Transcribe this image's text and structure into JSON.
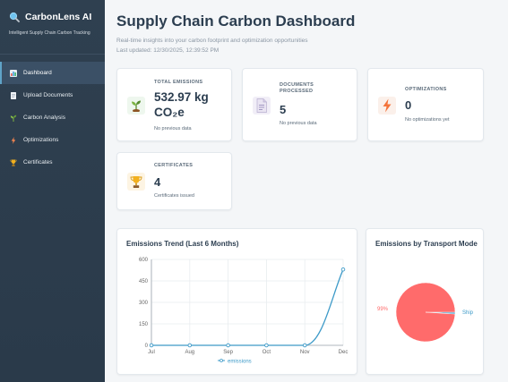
{
  "app": {
    "name": "CarbonLens AI",
    "tagline": "Intelligent Supply Chain Carbon Tracking"
  },
  "nav": [
    {
      "label": "Dashboard",
      "icon": "chart-icon",
      "active": true
    },
    {
      "label": "Upload Documents",
      "icon": "document-icon",
      "active": false
    },
    {
      "label": "Carbon Analysis",
      "icon": "sprout-icon",
      "active": false
    },
    {
      "label": "Optimizations",
      "icon": "lightning-icon",
      "active": false
    },
    {
      "label": "Certificates",
      "icon": "trophy-icon",
      "active": false
    }
  ],
  "header": {
    "title": "Supply Chain Carbon Dashboard",
    "subtitle": "Real-time insights into your carbon footprint and optimization opportunities",
    "updated": "Last updated: 12/30/2025, 12:39:52 PM"
  },
  "stats": {
    "emissions": {
      "label": "TOTAL EMISSIONS",
      "value_line1": "532.97 kg",
      "value_line2": "CO₂e",
      "note": "No previous data",
      "icon": "seedling-icon"
    },
    "documents": {
      "label_line1": "DOCUMENTS",
      "label_line2": "PROCESSED",
      "value": "5",
      "note": "No previous data",
      "icon": "document-icon"
    },
    "optimizations": {
      "label": "OPTIMIZATIONS",
      "value": "0",
      "note": "No optimizations yet",
      "icon": "lightning-icon"
    },
    "certificates": {
      "label": "CERTIFICATES",
      "value": "4",
      "note": "Certificates issued",
      "icon": "trophy-icon"
    }
  },
  "chart_data": [
    {
      "type": "line",
      "title": "Emissions Trend (Last 6 Months)",
      "x": [
        "Jul",
        "Aug",
        "Sep",
        "Oct",
        "Nov",
        "Dec"
      ],
      "series": [
        {
          "name": "emissions",
          "values": [
            0,
            0,
            0,
            0,
            0,
            530
          ],
          "color": "#3d9ac8"
        }
      ],
      "yticks": [
        0,
        150,
        300,
        450,
        600
      ],
      "ylim": [
        0,
        600
      ],
      "grid": true,
      "legend": "bottom"
    },
    {
      "type": "pie",
      "title": "Emissions by Transport Mode",
      "labels": [
        "Ship",
        ""
      ],
      "values": [
        1,
        99
      ],
      "data_labels": [
        "Ship",
        "99%"
      ],
      "colors": [
        "#3d9ac8",
        "#ff6b6b"
      ]
    }
  ],
  "colors": {
    "sidebar": "#2f4050",
    "accent": "#3d9ac8",
    "pie": "#ff6b6b"
  }
}
